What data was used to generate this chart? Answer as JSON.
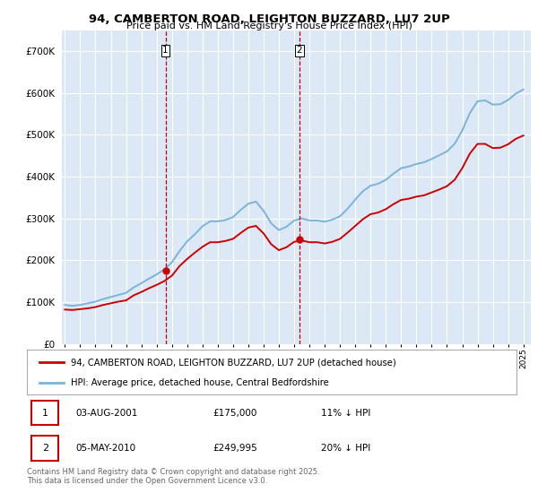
{
  "title": "94, CAMBERTON ROAD, LEIGHTON BUZZARD, LU7 2UP",
  "subtitle": "Price paid vs. HM Land Registry's House Price Index (HPI)",
  "legend_line1": "94, CAMBERTON ROAD, LEIGHTON BUZZARD, LU7 2UP (detached house)",
  "legend_line2": "HPI: Average price, detached house, Central Bedfordshire",
  "sale1_date": "03-AUG-2001",
  "sale1_price": "£175,000",
  "sale1_hpi": "11% ↓ HPI",
  "sale1_year": 2001.58,
  "sale1_price_val": 175000,
  "sale2_date": "05-MAY-2010",
  "sale2_price": "£249,995",
  "sale2_hpi": "20% ↓ HPI",
  "sale2_year": 2010.34,
  "sale2_price_val": 249995,
  "copyright": "Contains HM Land Registry data © Crown copyright and database right 2025.\nThis data is licensed under the Open Government Licence v3.0.",
  "hpi_color": "#7ab4d8",
  "price_color": "#cc0000",
  "vline_color": "#cc0000",
  "background_color": "#ffffff",
  "plot_bg_color": "#dce8f5",
  "ylim": [
    0,
    750000
  ],
  "xlim_start": 1994.8,
  "xlim_end": 2025.5,
  "hpi_data": {
    "years": [
      1995.0,
      1995.5,
      1996.0,
      1996.5,
      1997.0,
      1997.5,
      1998.0,
      1998.5,
      1999.0,
      1999.5,
      2000.0,
      2000.5,
      2001.0,
      2001.5,
      2002.0,
      2002.5,
      2003.0,
      2003.5,
      2004.0,
      2004.5,
      2005.0,
      2005.5,
      2006.0,
      2006.5,
      2007.0,
      2007.5,
      2008.0,
      2008.5,
      2009.0,
      2009.5,
      2010.0,
      2010.5,
      2011.0,
      2011.5,
      2012.0,
      2012.5,
      2013.0,
      2013.5,
      2014.0,
      2014.5,
      2015.0,
      2015.5,
      2016.0,
      2016.5,
      2017.0,
      2017.5,
      2018.0,
      2018.5,
      2019.0,
      2019.5,
      2020.0,
      2020.5,
      2021.0,
      2021.5,
      2022.0,
      2022.5,
      2023.0,
      2023.5,
      2024.0,
      2024.5,
      2025.0
    ],
    "values": [
      93000,
      91000,
      93000,
      97000,
      101000,
      107000,
      112000,
      117000,
      122000,
      135000,
      145000,
      156000,
      166000,
      178000,
      195000,
      222000,
      245000,
      262000,
      281000,
      293000,
      293000,
      296000,
      303000,
      320000,
      335000,
      340000,
      318000,
      288000,
      272000,
      280000,
      295000,
      300000,
      295000,
      295000,
      292000,
      297000,
      305000,
      323000,
      345000,
      365000,
      378000,
      383000,
      392000,
      407000,
      420000,
      424000,
      430000,
      434000,
      442000,
      451000,
      460000,
      478000,
      510000,
      552000,
      580000,
      582000,
      572000,
      573000,
      583000,
      598000,
      608000
    ]
  },
  "price_data": {
    "years": [
      1995.0,
      1995.5,
      1996.0,
      1996.5,
      1997.0,
      1997.5,
      1998.0,
      1998.5,
      1999.0,
      1999.5,
      2000.0,
      2000.5,
      2001.0,
      2001.5,
      2002.0,
      2002.5,
      2003.0,
      2003.5,
      2004.0,
      2004.5,
      2005.0,
      2005.5,
      2006.0,
      2006.5,
      2007.0,
      2007.5,
      2008.0,
      2008.5,
      2009.0,
      2009.5,
      2010.0,
      2010.5,
      2011.0,
      2011.5,
      2012.0,
      2012.5,
      2013.0,
      2013.5,
      2014.0,
      2014.5,
      2015.0,
      2015.5,
      2016.0,
      2016.5,
      2017.0,
      2017.5,
      2018.0,
      2018.5,
      2019.0,
      2019.5,
      2020.0,
      2020.5,
      2021.0,
      2021.5,
      2022.0,
      2022.5,
      2023.0,
      2023.5,
      2024.0,
      2024.5,
      2025.0
    ],
    "values": [
      82000,
      81000,
      83000,
      85000,
      88000,
      93000,
      97000,
      101000,
      104000,
      116000,
      124000,
      133000,
      141000,
      150000,
      163000,
      186000,
      203000,
      218000,
      232000,
      243000,
      243000,
      246000,
      251000,
      265000,
      278000,
      282000,
      264000,
      238000,
      224000,
      231000,
      244000,
      247000,
      243000,
      243000,
      240000,
      244000,
      251000,
      266000,
      282000,
      298000,
      310000,
      314000,
      322000,
      334000,
      344000,
      347000,
      352000,
      355000,
      362000,
      369000,
      377000,
      392000,
      420000,
      455000,
      478000,
      478000,
      468000,
      469000,
      477000,
      490000,
      498000
    ]
  }
}
